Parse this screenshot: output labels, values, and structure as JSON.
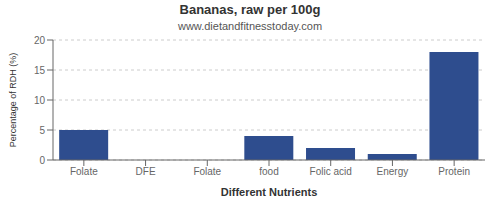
{
  "chart_data": {
    "type": "bar",
    "title": "Bananas, raw per 100g",
    "subtitle": "www.dietandfitnesstoday.com",
    "xlabel": "Different Nutrients",
    "ylabel": "Percentage of RDH (%)",
    "categories": [
      "Folate",
      "DFE",
      "Folate",
      "food",
      "Folic acid",
      "Energy",
      "Protein"
    ],
    "values": [
      5,
      0,
      0,
      4,
      2,
      1,
      18
    ],
    "color": "#2e4d8e",
    "ylim": [
      0,
      20
    ],
    "yticks": [
      0,
      5,
      10,
      15,
      20
    ],
    "grid": true
  }
}
